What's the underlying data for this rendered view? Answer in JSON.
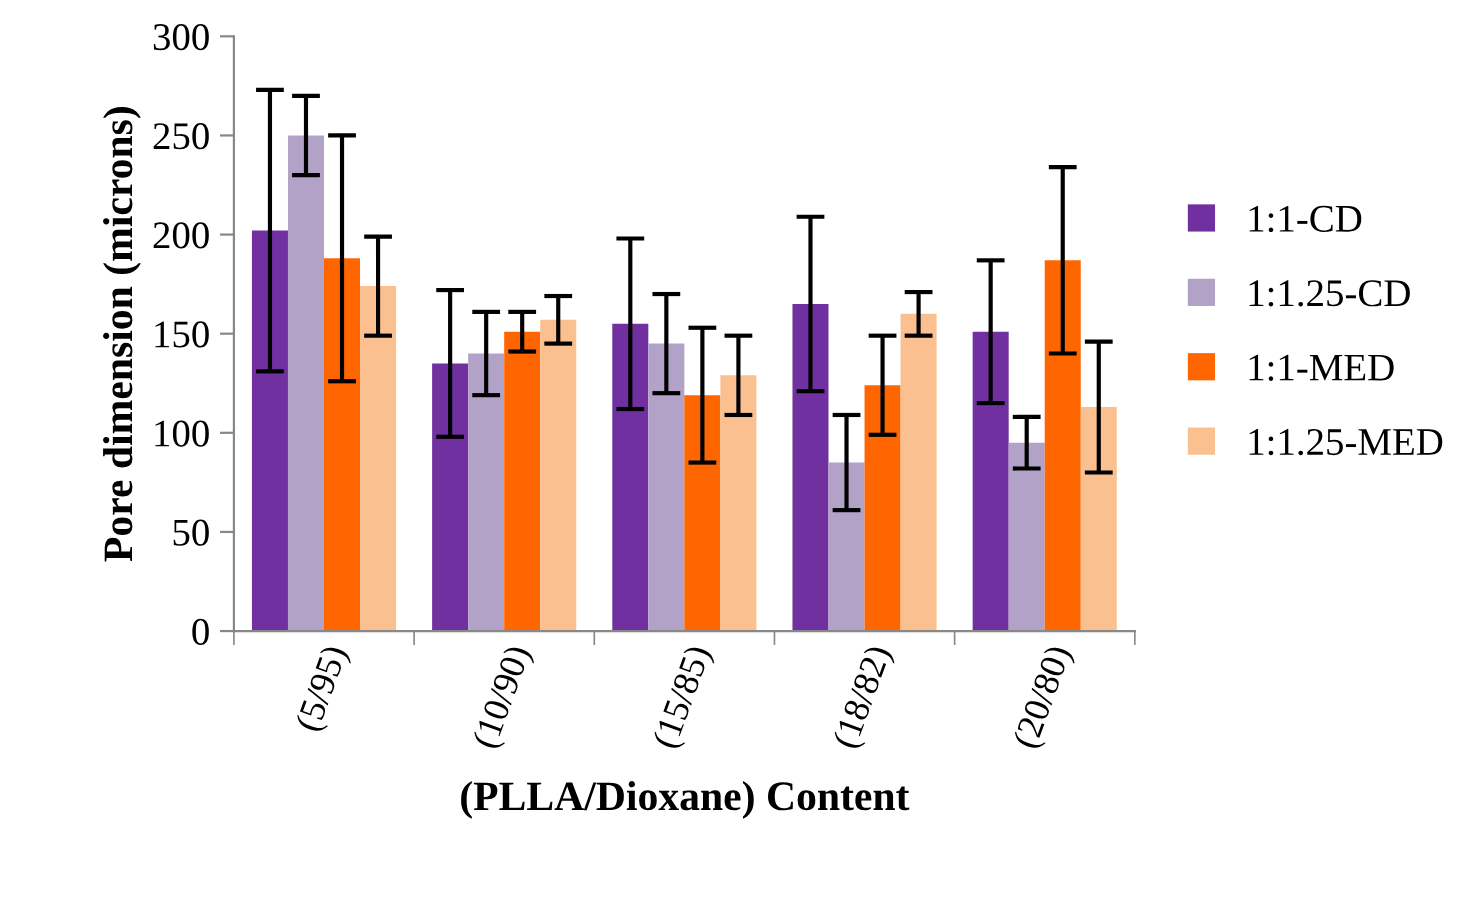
{
  "chart_data": {
    "type": "bar",
    "xlabel": "(PLLA/Dioxane) Content",
    "ylabel": "Pore dimension (microns)",
    "categories": [
      "(5/95)",
      "(10/90)",
      "(15/85)",
      "(18/82)",
      "(20/80)"
    ],
    "series": [
      {
        "name": "1:1-CD",
        "color": "#7030a0",
        "values": [
          202,
          135,
          155,
          165,
          151
        ],
        "errors": [
          71,
          37,
          43,
          44,
          36
        ]
      },
      {
        "name": "1:1.25-CD",
        "color": "#b3a2c7",
        "values": [
          250,
          140,
          145,
          85,
          95
        ],
        "errors": [
          20,
          21,
          25,
          24,
          13
        ]
      },
      {
        "name": "1:1-MED",
        "color": "#ff6600",
        "values": [
          188,
          151,
          119,
          124,
          187
        ],
        "errors": [
          62,
          10,
          34,
          25,
          47
        ]
      },
      {
        "name": "1:1.25-MED",
        "color": "#fac090",
        "values": [
          174,
          157,
          129,
          160,
          113
        ],
        "errors": [
          25,
          12,
          20,
          11,
          33
        ]
      }
    ],
    "ylim": [
      0,
      300
    ],
    "yticks": [
      0,
      50,
      100,
      150,
      200,
      250,
      300
    ],
    "grid": false,
    "legend": "right"
  }
}
